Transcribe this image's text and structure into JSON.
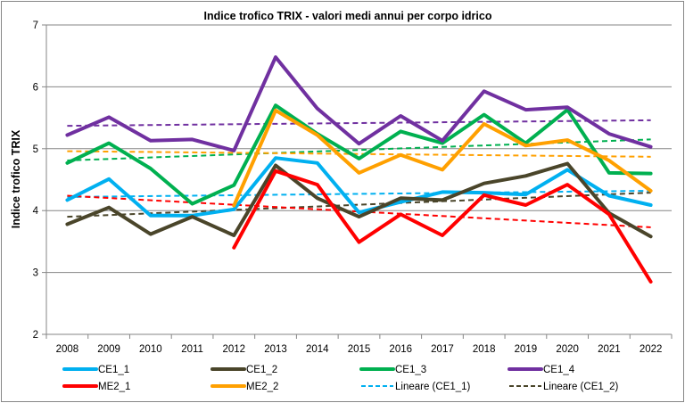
{
  "chart_data": {
    "type": "line",
    "title": "Indice trofico TRIX - valori medi annui per corpo idrico",
    "xlabel": "",
    "ylabel": "Indice trofico TRIX",
    "ylim": [
      2,
      7
    ],
    "yticks": [
      "2",
      "3",
      "4",
      "5",
      "6",
      "7"
    ],
    "grid": true,
    "legend_position": "bottom",
    "categories": [
      "2008",
      "2009",
      "2010",
      "2011",
      "2012",
      "2013",
      "2014",
      "2015",
      "2016",
      "2017",
      "2018",
      "2019",
      "2020",
      "2021",
      "2022"
    ],
    "series": [
      {
        "name": "CE1_1",
        "color": "#00B0F0",
        "values": [
          4.17,
          4.51,
          3.92,
          3.92,
          4.02,
          4.85,
          4.77,
          3.97,
          4.14,
          4.3,
          4.29,
          4.26,
          4.66,
          4.24,
          4.09
        ]
      },
      {
        "name": "CE1_2",
        "color": "#4A452A",
        "values": [
          3.78,
          4.05,
          3.62,
          3.9,
          3.6,
          4.73,
          4.2,
          3.9,
          4.2,
          4.17,
          4.44,
          4.56,
          4.76,
          3.96,
          3.58
        ]
      },
      {
        "name": "CE1_3",
        "color": "#00B050",
        "values": [
          4.77,
          5.09,
          4.68,
          4.11,
          4.41,
          5.7,
          5.24,
          4.84,
          5.28,
          5.09,
          5.55,
          5.09,
          5.63,
          4.61,
          4.6
        ]
      },
      {
        "name": "CE1_4",
        "color": "#7030A0",
        "values": [
          5.22,
          5.51,
          5.13,
          5.15,
          4.97,
          6.48,
          5.65,
          5.08,
          5.53,
          5.13,
          5.93,
          5.63,
          5.67,
          5.24,
          5.03
        ]
      },
      {
        "name": "ME2_1",
        "color": "#FF0000",
        "values": [
          null,
          null,
          null,
          null,
          3.4,
          4.64,
          4.42,
          3.49,
          3.94,
          3.6,
          4.25,
          4.09,
          4.42,
          3.94,
          2.85
        ]
      },
      {
        "name": "ME2_2",
        "color": "#FFA000",
        "values": [
          null,
          null,
          null,
          null,
          4.08,
          5.62,
          5.22,
          4.61,
          4.9,
          4.66,
          5.4,
          5.05,
          5.14,
          4.81,
          4.32
        ]
      }
    ],
    "trendlines": [
      {
        "name": "Lineare (CE1_1)",
        "of": "CE1_1",
        "color": "#00B0F0",
        "start": 4.22,
        "end": 4.32,
        "in_legend": true
      },
      {
        "name": "Lineare (CE1_2)",
        "of": "CE1_2",
        "color": "#4A452A",
        "start": 3.9,
        "end": 4.29,
        "in_legend": true
      },
      {
        "name": "Lineare (CE1_3)",
        "of": "CE1_3",
        "color": "#00B050",
        "start": 4.81,
        "end": 5.15,
        "in_legend": false
      },
      {
        "name": "Lineare (CE1_4)",
        "of": "CE1_4",
        "color": "#7030A0",
        "start": 5.37,
        "end": 5.46,
        "in_legend": false
      },
      {
        "name": "Lineare (ME2_1)",
        "of": "ME2_1",
        "color": "#FF0000",
        "start": 4.24,
        "end": 3.73,
        "in_legend": false
      },
      {
        "name": "Lineare (ME2_2)",
        "of": "ME2_2",
        "color": "#FFA000",
        "start": 4.96,
        "end": 4.87,
        "in_legend": false
      }
    ],
    "legend": [
      {
        "label": "CE1_1",
        "color": "#00B0F0",
        "style": "solid"
      },
      {
        "label": "CE1_2",
        "color": "#4A452A",
        "style": "solid"
      },
      {
        "label": "CE1_3",
        "color": "#00B050",
        "style": "solid"
      },
      {
        "label": "CE1_4",
        "color": "#7030A0",
        "style": "solid"
      },
      {
        "label": "ME2_1",
        "color": "#FF0000",
        "style": "solid"
      },
      {
        "label": "ME2_2",
        "color": "#FFA000",
        "style": "solid"
      },
      {
        "label": "Lineare (CE1_1)",
        "color": "#00B0F0",
        "style": "dashed"
      },
      {
        "label": "Lineare (CE1_2)",
        "color": "#4A452A",
        "style": "dashed"
      }
    ]
  }
}
